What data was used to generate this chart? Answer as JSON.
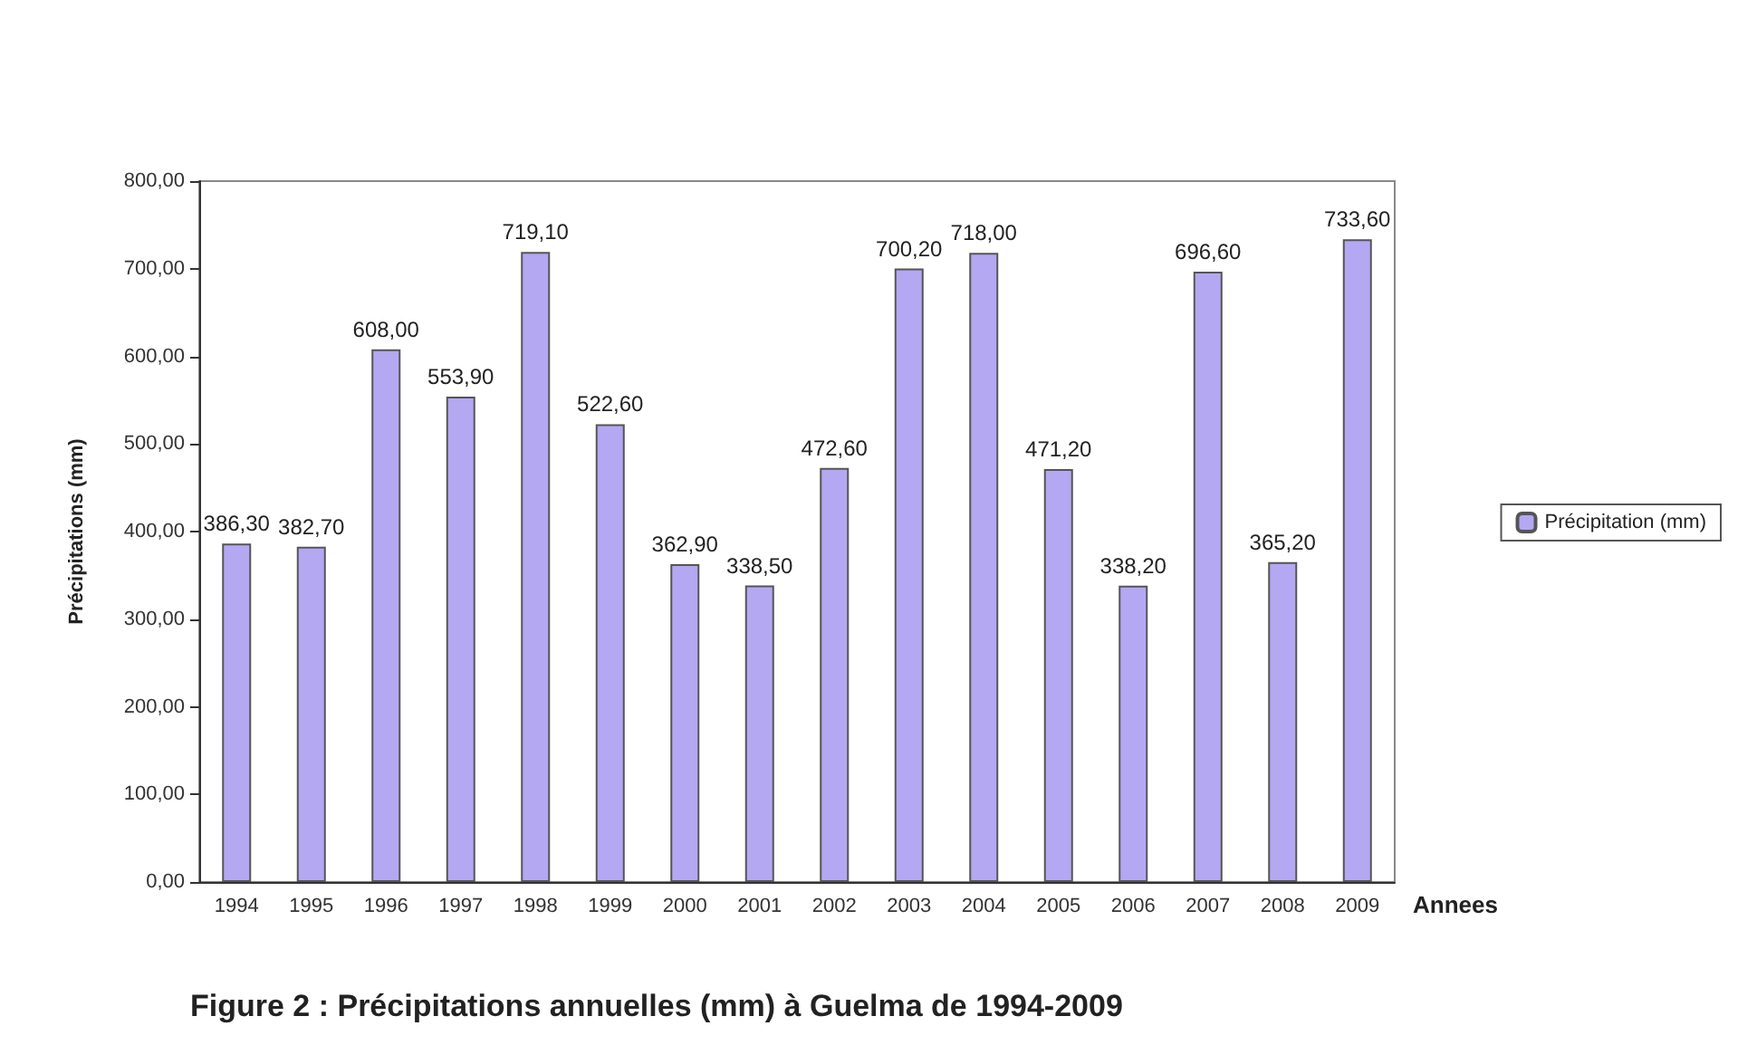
{
  "chart_data": {
    "type": "bar",
    "title": "Figure 2 : Précipitations annuelles (mm) à Guelma de 1994-2009",
    "xlabel": "Annees",
    "ylabel": "Précipitations (mm)",
    "categories": [
      "1994",
      "1995",
      "1996",
      "1997",
      "1998",
      "1999",
      "2000",
      "2001",
      "2002",
      "2003",
      "2004",
      "2005",
      "2006",
      "2007",
      "2008",
      "2009"
    ],
    "series": [
      {
        "name": "Précipitation (mm)",
        "color": "#b4a8f2",
        "values": [
          386.3,
          382.7,
          608,
          553.9,
          719.1,
          522.6,
          362.9,
          338.5,
          472.6,
          700.2,
          718,
          471.2,
          338.2,
          696.6,
          365.2,
          733.6
        ],
        "value_labels": [
          "386,30",
          "382,70",
          "608,00",
          "553,90",
          "719,10",
          "522,60",
          "362,90",
          "338,50",
          "472,60",
          "700,20",
          "718,00",
          "471,20",
          "338,20",
          "696,60",
          "365,20",
          "733,60"
        ]
      }
    ],
    "ylim": [
      0,
      800
    ],
    "yticks": [
      {
        "value": 0,
        "label": "0,00"
      },
      {
        "value": 100,
        "label": "100,00"
      },
      {
        "value": 200,
        "label": "200,00"
      },
      {
        "value": 300,
        "label": "300,00"
      },
      {
        "value": 400,
        "label": "400,00"
      },
      {
        "value": 500,
        "label": "500,00"
      },
      {
        "value": 600,
        "label": "600,00"
      },
      {
        "value": 700,
        "label": "700,00"
      },
      {
        "value": 800,
        "label": "800,00"
      }
    ],
    "grid": false,
    "legend": "right"
  }
}
